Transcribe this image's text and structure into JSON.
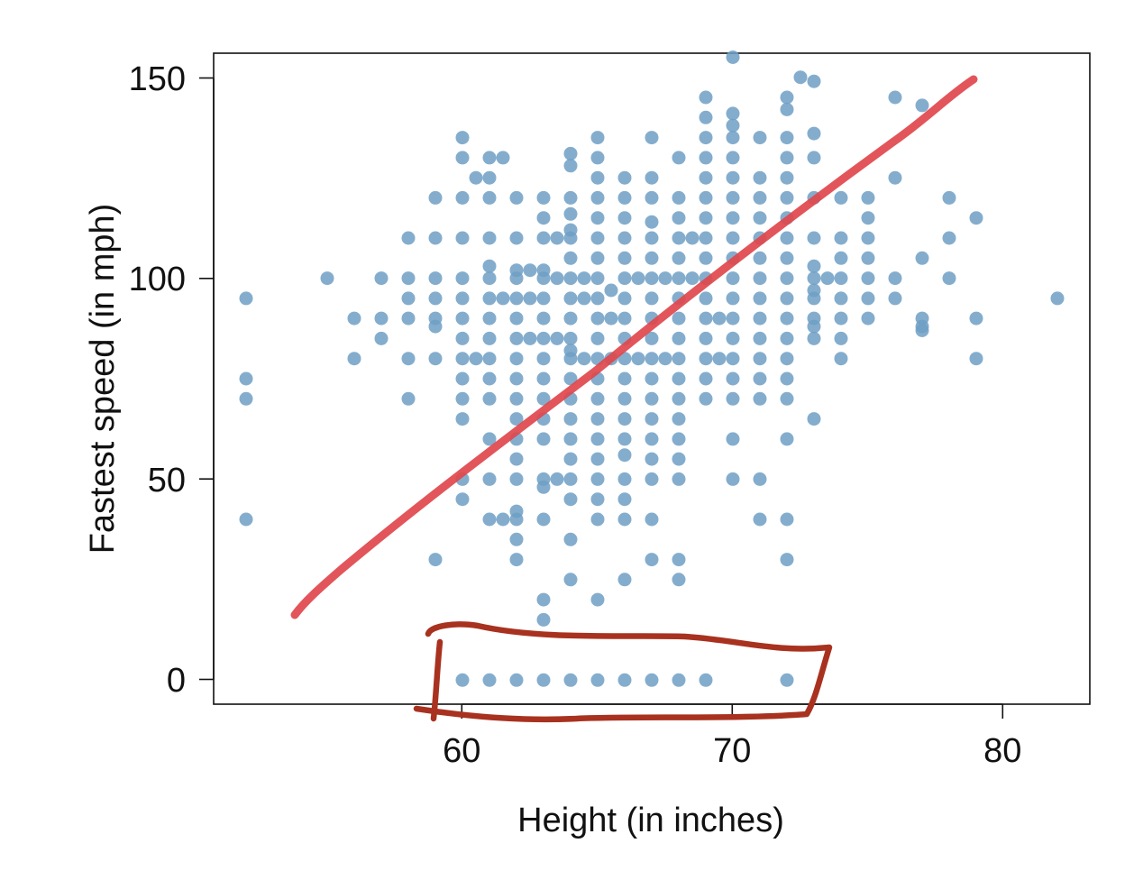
{
  "chart_data": {
    "type": "scatter",
    "title": "",
    "xlabel": "Height (in inches)",
    "ylabel": "Fastest speed (in mph)",
    "xlim": [
      50.8,
      83.2
    ],
    "ylim": [
      -6,
      156
    ],
    "xticks": [
      60,
      70,
      80
    ],
    "yticks": [
      0,
      50,
      100,
      150
    ],
    "grid": false,
    "legend": "none",
    "colors": {
      "points": "#6f9fc4",
      "trend_line": "#e0474c",
      "annotation_box": "#a8321f"
    },
    "series": [
      {
        "values": [
          [
            52,
            95
          ],
          [
            52,
            75
          ],
          [
            52,
            70
          ],
          [
            52,
            40
          ],
          [
            55,
            100
          ],
          [
            56,
            90
          ],
          [
            56,
            80
          ],
          [
            57,
            100
          ],
          [
            57,
            90
          ],
          [
            57,
            85
          ],
          [
            58,
            110
          ],
          [
            58,
            100
          ],
          [
            58,
            95
          ],
          [
            58,
            90
          ],
          [
            58,
            80
          ],
          [
            58,
            70
          ],
          [
            59,
            120
          ],
          [
            59,
            110
          ],
          [
            59,
            100
          ],
          [
            59,
            95
          ],
          [
            59,
            90
          ],
          [
            59,
            88
          ],
          [
            59,
            80
          ],
          [
            59,
            30
          ],
          [
            60,
            135
          ],
          [
            60,
            130
          ],
          [
            60,
            120
          ],
          [
            60,
            110
          ],
          [
            60,
            100
          ],
          [
            60,
            95
          ],
          [
            60,
            90
          ],
          [
            60,
            85
          ],
          [
            60,
            80
          ],
          [
            60,
            75
          ],
          [
            60,
            70
          ],
          [
            60,
            65
          ],
          [
            60,
            50
          ],
          [
            60,
            45
          ],
          [
            60,
            0
          ],
          [
            60.5,
            125
          ],
          [
            60.5,
            80
          ],
          [
            61,
            130
          ],
          [
            61,
            125
          ],
          [
            61,
            120
          ],
          [
            61,
            110
          ],
          [
            61,
            103
          ],
          [
            61,
            100
          ],
          [
            61,
            95
          ],
          [
            61,
            90
          ],
          [
            61,
            85
          ],
          [
            61,
            80
          ],
          [
            61,
            75
          ],
          [
            61,
            70
          ],
          [
            61,
            60
          ],
          [
            61,
            50
          ],
          [
            61,
            40
          ],
          [
            61,
            0
          ],
          [
            61.5,
            130
          ],
          [
            61.5,
            95
          ],
          [
            61.5,
            40
          ],
          [
            62,
            120
          ],
          [
            62,
            110
          ],
          [
            62,
            102
          ],
          [
            62,
            100
          ],
          [
            62,
            95
          ],
          [
            62,
            90
          ],
          [
            62,
            85
          ],
          [
            62,
            80
          ],
          [
            62,
            75
          ],
          [
            62,
            70
          ],
          [
            62,
            65
          ],
          [
            62,
            60
          ],
          [
            62,
            55
          ],
          [
            62,
            50
          ],
          [
            62,
            42
          ],
          [
            62,
            40
          ],
          [
            62,
            35
          ],
          [
            62,
            30
          ],
          [
            62,
            0
          ],
          [
            62.5,
            102
          ],
          [
            62.5,
            95
          ],
          [
            62.5,
            85
          ],
          [
            63,
            120
          ],
          [
            63,
            115
          ],
          [
            63,
            110
          ],
          [
            63,
            102
          ],
          [
            63,
            100
          ],
          [
            63,
            95
          ],
          [
            63,
            90
          ],
          [
            63,
            85
          ],
          [
            63,
            80
          ],
          [
            63,
            75
          ],
          [
            63,
            70
          ],
          [
            63,
            65
          ],
          [
            63,
            60
          ],
          [
            63,
            50
          ],
          [
            63,
            48
          ],
          [
            63,
            40
          ],
          [
            63,
            20
          ],
          [
            63,
            15
          ],
          [
            63,
            0
          ],
          [
            63.5,
            110
          ],
          [
            63.5,
            100
          ],
          [
            63.5,
            85
          ],
          [
            63.5,
            50
          ],
          [
            64,
            131
          ],
          [
            64,
            128
          ],
          [
            64,
            120
          ],
          [
            64,
            116
          ],
          [
            64,
            112
          ],
          [
            64,
            110
          ],
          [
            64,
            105
          ],
          [
            64,
            100
          ],
          [
            64,
            95
          ],
          [
            64,
            90
          ],
          [
            64,
            85
          ],
          [
            64,
            82
          ],
          [
            64,
            80
          ],
          [
            64,
            75
          ],
          [
            64,
            70
          ],
          [
            64,
            65
          ],
          [
            64,
            60
          ],
          [
            64,
            55
          ],
          [
            64,
            50
          ],
          [
            64,
            45
          ],
          [
            64,
            35
          ],
          [
            64,
            25
          ],
          [
            64,
            0
          ],
          [
            64.5,
            100
          ],
          [
            64.5,
            95
          ],
          [
            64.5,
            80
          ],
          [
            65,
            135
          ],
          [
            65,
            130
          ],
          [
            65,
            125
          ],
          [
            65,
            120
          ],
          [
            65,
            115
          ],
          [
            65,
            110
          ],
          [
            65,
            105
          ],
          [
            65,
            100
          ],
          [
            65,
            95
          ],
          [
            65,
            90
          ],
          [
            65,
            85
          ],
          [
            65,
            80
          ],
          [
            65,
            75
          ],
          [
            65,
            70
          ],
          [
            65,
            65
          ],
          [
            65,
            60
          ],
          [
            65,
            55
          ],
          [
            65,
            50
          ],
          [
            65,
            45
          ],
          [
            65,
            40
          ],
          [
            65,
            20
          ],
          [
            65,
            0
          ],
          [
            65.5,
            97
          ],
          [
            65.5,
            90
          ],
          [
            65.5,
            80
          ],
          [
            66,
            125
          ],
          [
            66,
            120
          ],
          [
            66,
            115
          ],
          [
            66,
            110
          ],
          [
            66,
            105
          ],
          [
            66,
            100
          ],
          [
            66,
            95
          ],
          [
            66,
            90
          ],
          [
            66,
            85
          ],
          [
            66,
            80
          ],
          [
            66,
            75
          ],
          [
            66,
            70
          ],
          [
            66,
            65
          ],
          [
            66,
            60
          ],
          [
            66,
            56
          ],
          [
            66,
            50
          ],
          [
            66,
            45
          ],
          [
            66,
            40
          ],
          [
            66,
            25
          ],
          [
            66,
            0
          ],
          [
            66.5,
            100
          ],
          [
            66.5,
            80
          ],
          [
            67,
            135
          ],
          [
            67,
            125
          ],
          [
            67,
            120
          ],
          [
            67,
            114
          ],
          [
            67,
            110
          ],
          [
            67,
            105
          ],
          [
            67,
            100
          ],
          [
            67,
            95
          ],
          [
            67,
            90
          ],
          [
            67,
            85
          ],
          [
            67,
            80
          ],
          [
            67,
            75
          ],
          [
            67,
            70
          ],
          [
            67,
            65
          ],
          [
            67,
            60
          ],
          [
            67,
            55
          ],
          [
            67,
            50
          ],
          [
            67,
            40
          ],
          [
            67,
            30
          ],
          [
            67,
            0
          ],
          [
            67.5,
            100
          ],
          [
            67.5,
            80
          ],
          [
            68,
            130
          ],
          [
            68,
            120
          ],
          [
            68,
            115
          ],
          [
            68,
            110
          ],
          [
            68,
            105
          ],
          [
            68,
            100
          ],
          [
            68,
            95
          ],
          [
            68,
            90
          ],
          [
            68,
            85
          ],
          [
            68,
            80
          ],
          [
            68,
            75
          ],
          [
            68,
            70
          ],
          [
            68,
            65
          ],
          [
            68,
            60
          ],
          [
            68,
            55
          ],
          [
            68,
            50
          ],
          [
            68,
            30
          ],
          [
            68,
            25
          ],
          [
            68,
            0
          ],
          [
            68.5,
            110
          ],
          [
            68.5,
            100
          ],
          [
            69,
            145
          ],
          [
            69,
            140
          ],
          [
            69,
            135
          ],
          [
            69,
            130
          ],
          [
            69,
            125
          ],
          [
            69,
            120
          ],
          [
            69,
            115
          ],
          [
            69,
            110
          ],
          [
            69,
            105
          ],
          [
            69,
            100
          ],
          [
            69,
            95
          ],
          [
            69,
            90
          ],
          [
            69,
            85
          ],
          [
            69,
            80
          ],
          [
            69,
            75
          ],
          [
            69,
            70
          ],
          [
            69,
            0
          ],
          [
            69.5,
            90
          ],
          [
            69.5,
            80
          ],
          [
            70,
            155
          ],
          [
            70,
            141
          ],
          [
            70,
            138
          ],
          [
            70,
            135
          ],
          [
            70,
            130
          ],
          [
            70,
            125
          ],
          [
            70,
            120
          ],
          [
            70,
            115
          ],
          [
            70,
            110
          ],
          [
            70,
            105
          ],
          [
            70,
            100
          ],
          [
            70,
            95
          ],
          [
            70,
            90
          ],
          [
            70,
            85
          ],
          [
            70,
            80
          ],
          [
            70,
            75
          ],
          [
            70,
            70
          ],
          [
            70,
            60
          ],
          [
            70,
            50
          ],
          [
            71,
            135
          ],
          [
            71,
            125
          ],
          [
            71,
            120
          ],
          [
            71,
            115
          ],
          [
            71,
            110
          ],
          [
            71,
            105
          ],
          [
            71,
            100
          ],
          [
            71,
            95
          ],
          [
            71,
            90
          ],
          [
            71,
            85
          ],
          [
            71,
            80
          ],
          [
            71,
            75
          ],
          [
            71,
            70
          ],
          [
            71,
            50
          ],
          [
            71,
            40
          ],
          [
            72,
            145
          ],
          [
            72,
            142
          ],
          [
            72,
            135
          ],
          [
            72,
            130
          ],
          [
            72,
            125
          ],
          [
            72,
            120
          ],
          [
            72,
            115
          ],
          [
            72,
            110
          ],
          [
            72,
            105
          ],
          [
            72,
            100
          ],
          [
            72,
            95
          ],
          [
            72,
            90
          ],
          [
            72,
            85
          ],
          [
            72,
            80
          ],
          [
            72,
            75
          ],
          [
            72,
            70
          ],
          [
            72,
            60
          ],
          [
            72,
            40
          ],
          [
            72,
            30
          ],
          [
            72,
            0
          ],
          [
            72.5,
            150
          ],
          [
            73,
            149
          ],
          [
            73,
            136
          ],
          [
            73,
            130
          ],
          [
            73,
            120
          ],
          [
            73,
            110
          ],
          [
            73,
            103
          ],
          [
            73,
            100
          ],
          [
            73,
            97
          ],
          [
            73,
            95
          ],
          [
            73,
            90
          ],
          [
            73,
            88
          ],
          [
            73,
            85
          ],
          [
            73,
            65
          ],
          [
            73.5,
            100
          ],
          [
            74,
            120
          ],
          [
            74,
            110
          ],
          [
            74,
            105
          ],
          [
            74,
            100
          ],
          [
            74,
            95
          ],
          [
            74,
            90
          ],
          [
            74,
            85
          ],
          [
            74,
            80
          ],
          [
            75,
            120
          ],
          [
            75,
            115
          ],
          [
            75,
            110
          ],
          [
            75,
            105
          ],
          [
            75,
            100
          ],
          [
            75,
            95
          ],
          [
            75,
            90
          ],
          [
            76,
            145
          ],
          [
            76,
            125
          ],
          [
            76,
            100
          ],
          [
            76,
            95
          ],
          [
            77,
            143
          ],
          [
            77,
            105
          ],
          [
            77,
            90
          ],
          [
            77,
            88
          ],
          [
            77,
            87
          ],
          [
            78,
            120
          ],
          [
            78,
            110
          ],
          [
            78,
            100
          ],
          [
            79,
            115
          ],
          [
            79,
            90
          ],
          [
            79,
            80
          ],
          [
            82,
            95
          ]
        ]
      }
    ]
  }
}
